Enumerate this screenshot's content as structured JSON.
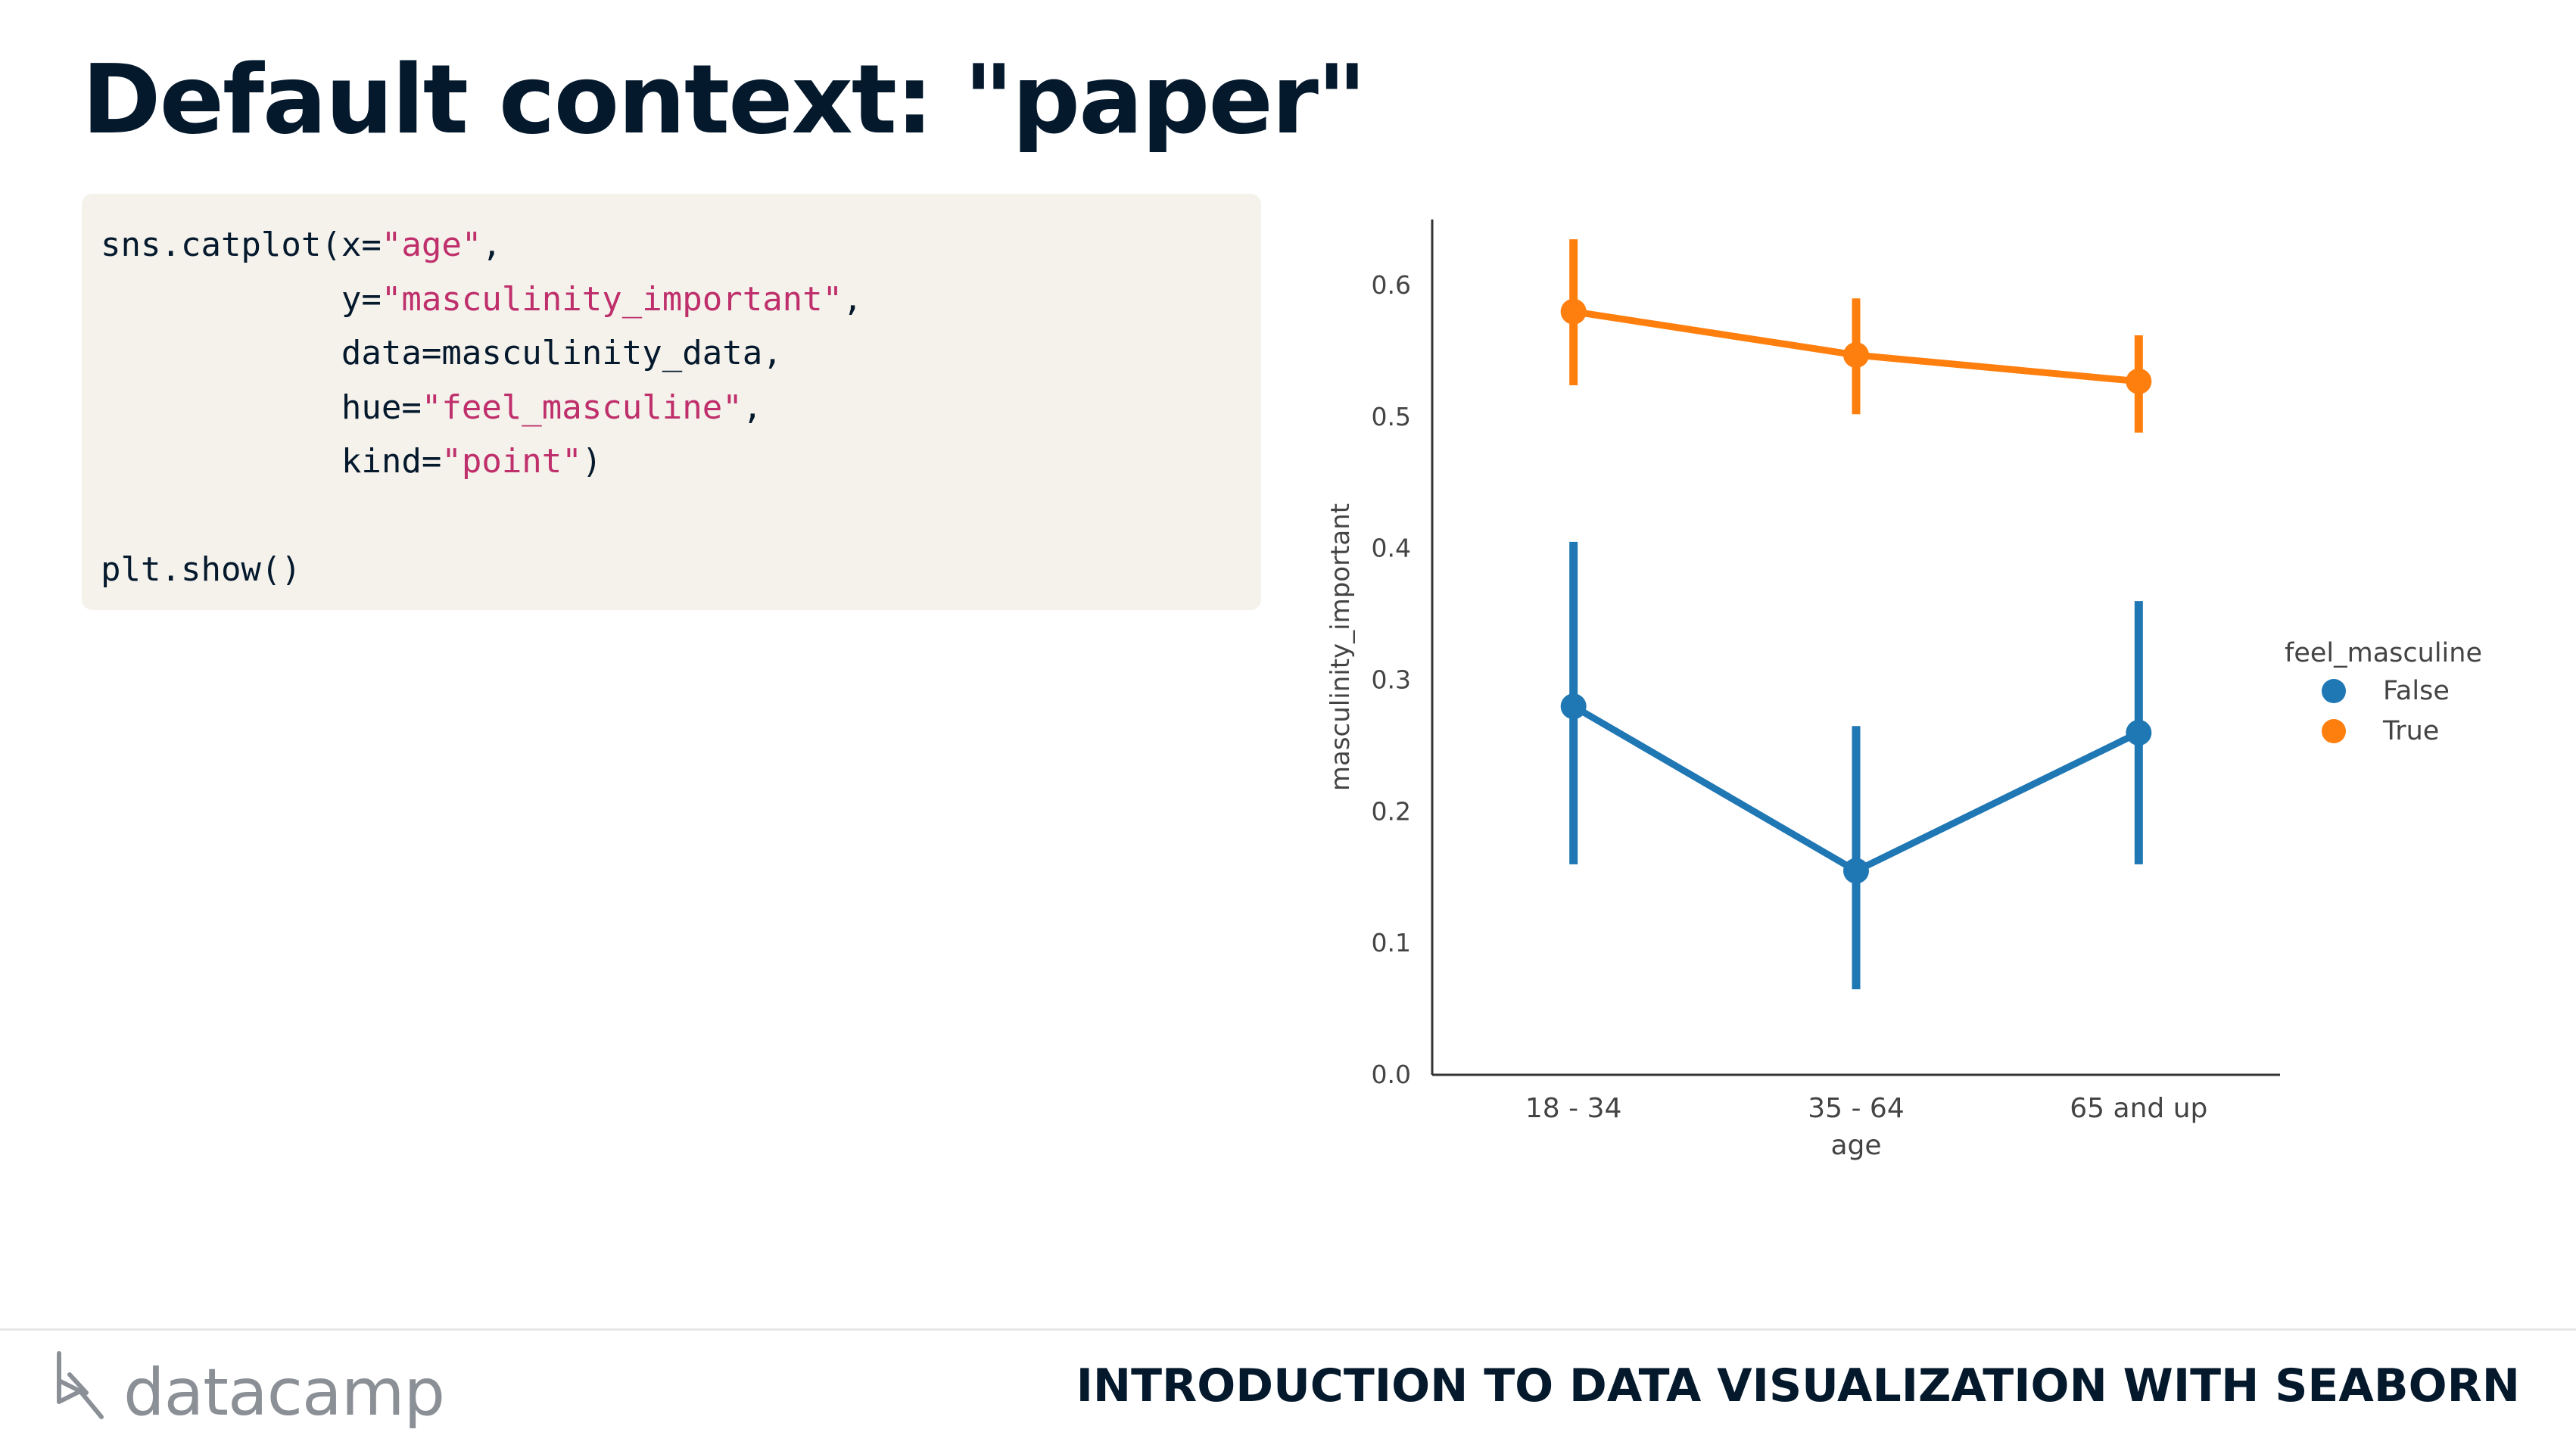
{
  "slide": {
    "title": "Default context: \"paper\"",
    "course_title": "INTRODUCTION TO DATA VISUALIZATION WITH SEABORN",
    "brand": "datacamp"
  },
  "code": {
    "lines": [
      [
        {
          "t": "sns.catplot(x="
        },
        {
          "t": "\"age\"",
          "s": true
        },
        {
          "t": ","
        }
      ],
      [
        {
          "t": "            y="
        },
        {
          "t": "\"masculinity_important\"",
          "s": true
        },
        {
          "t": ","
        }
      ],
      [
        {
          "t": "            data=masculinity_data,"
        }
      ],
      [
        {
          "t": "            hue="
        },
        {
          "t": "\"feel_masculine\"",
          "s": true
        },
        {
          "t": ","
        }
      ],
      [
        {
          "t": "            kind="
        },
        {
          "t": "\"point\"",
          "s": true
        },
        {
          "t": ")"
        }
      ],
      [],
      [
        {
          "t": "plt.show()"
        }
      ]
    ]
  },
  "colors": {
    "title": "#05192d",
    "code_background": "#f5f2ec",
    "code_string": "#bf2f6b",
    "series_false": "#1f77b4",
    "series_true": "#ff7f0e"
  },
  "chart_data": {
    "type": "line",
    "style": "pointplot with 95% confidence interval error bars",
    "categories": [
      "18 - 34",
      "35 - 64",
      "65 and up"
    ],
    "xlabel": "age",
    "ylabel": "masculinity_important",
    "ylim": [
      0.0,
      0.65
    ],
    "yticks": [
      0.0,
      0.1,
      0.2,
      0.3,
      0.4,
      0.5,
      0.6
    ],
    "ytick_labels": [
      "0.0",
      "0.1",
      "0.2",
      "0.3",
      "0.4",
      "0.5",
      "0.6"
    ],
    "grid": false,
    "legend": {
      "title": "feel_masculine",
      "placement": "right"
    },
    "series": [
      {
        "name": "False",
        "color": "#1f77b4",
        "values": [
          0.28,
          0.155,
          0.26
        ],
        "ci_low": [
          0.16,
          0.065,
          0.16
        ],
        "ci_high": [
          0.405,
          0.265,
          0.36
        ]
      },
      {
        "name": "True",
        "color": "#ff7f0e",
        "values": [
          0.58,
          0.547,
          0.527
        ],
        "ci_low": [
          0.524,
          0.502,
          0.488
        ],
        "ci_high": [
          0.635,
          0.59,
          0.562
        ]
      }
    ]
  }
}
